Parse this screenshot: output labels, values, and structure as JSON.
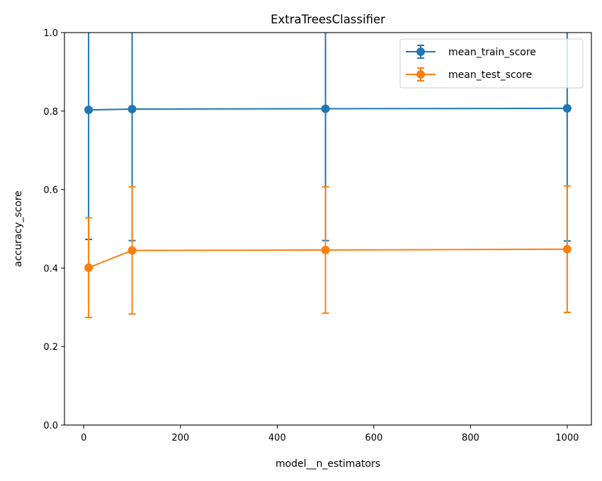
{
  "chart_data": {
    "type": "line",
    "title": "ExtraTreesClassifier",
    "xlabel": "model__n_estimators",
    "ylabel": "accuracy_score",
    "xlim": [
      -40,
      1050
    ],
    "ylim": [
      0,
      1.0
    ],
    "xticks": [
      0,
      200,
      400,
      600,
      800,
      1000
    ],
    "xtick_labels": [
      "0",
      "200",
      "400",
      "600",
      "800",
      "1000"
    ],
    "yticks": [
      0,
      0.2,
      0.4,
      0.6,
      0.8,
      1.0
    ],
    "ytick_labels": [
      "0.0",
      "0.2",
      "0.4",
      "0.6",
      "0.8",
      "1.0"
    ],
    "grid": false,
    "legend_position": "top-right",
    "x": [
      10,
      100,
      500,
      1000
    ],
    "series": [
      {
        "name": "mean_train_score",
        "color": "#1f77b4",
        "values": [
          0.803,
          0.805,
          0.806,
          0.807
        ],
        "errors": [
          0.33,
          0.335,
          0.336,
          0.338
        ]
      },
      {
        "name": "mean_test_score",
        "color": "#ff7f0e",
        "values": [
          0.401,
          0.445,
          0.446,
          0.448
        ],
        "errors": [
          0.127,
          0.162,
          0.161,
          0.161
        ]
      }
    ]
  }
}
